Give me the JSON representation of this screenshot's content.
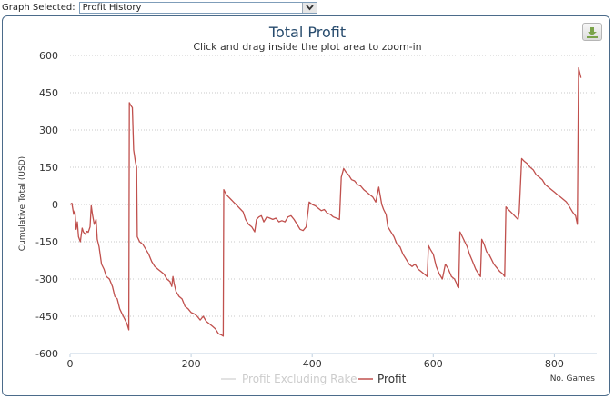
{
  "header": {
    "graph_selected_label": "Graph Selected:",
    "graph_selected_value": "Profit History"
  },
  "toolbar": {
    "download_icon": "download-icon"
  },
  "chart_data": {
    "type": "line",
    "title": "Total Profit",
    "subtitle": "Click and drag inside the plot area to zoom-in",
    "xlabel": "No. Games",
    "ylabel": "Cumulative Total (USD)",
    "xlim": [
      0,
      870
    ],
    "ylim": [
      -600,
      600
    ],
    "x_ticks": [
      0,
      200,
      400,
      600,
      800
    ],
    "y_ticks": [
      -600,
      -450,
      -300,
      -150,
      0,
      150,
      300,
      450,
      600
    ],
    "grid": "horizontal dotted",
    "legend_position": "bottom-center",
    "series": [
      {
        "name": "Profit Excluding Rake",
        "color": "#d8d8d8",
        "visible": false,
        "points": []
      },
      {
        "name": "Profit",
        "color": "#c0504d",
        "visible": true,
        "points": [
          [
            0,
            0
          ],
          [
            3,
            5
          ],
          [
            6,
            -40
          ],
          [
            8,
            -25
          ],
          [
            10,
            -100
          ],
          [
            12,
            -70
          ],
          [
            14,
            -130
          ],
          [
            17,
            -150
          ],
          [
            20,
            -95
          ],
          [
            22,
            -110
          ],
          [
            25,
            -120
          ],
          [
            28,
            -108
          ],
          [
            30,
            -112
          ],
          [
            33,
            -90
          ],
          [
            35,
            -5
          ],
          [
            37,
            -40
          ],
          [
            40,
            -80
          ],
          [
            43,
            -60
          ],
          [
            45,
            -140
          ],
          [
            48,
            -170
          ],
          [
            52,
            -240
          ],
          [
            56,
            -260
          ],
          [
            60,
            -290
          ],
          [
            65,
            -300
          ],
          [
            70,
            -330
          ],
          [
            74,
            -370
          ],
          [
            78,
            -380
          ],
          [
            82,
            -420
          ],
          [
            86,
            -440
          ],
          [
            90,
            -460
          ],
          [
            94,
            -480
          ],
          [
            97,
            -505
          ],
          [
            98,
            410
          ],
          [
            100,
            400
          ],
          [
            103,
            390
          ],
          [
            105,
            220
          ],
          [
            108,
            170
          ],
          [
            110,
            150
          ],
          [
            111,
            -130
          ],
          [
            115,
            -150
          ],
          [
            120,
            -160
          ],
          [
            125,
            -180
          ],
          [
            130,
            -200
          ],
          [
            135,
            -230
          ],
          [
            140,
            -250
          ],
          [
            145,
            -260
          ],
          [
            150,
            -270
          ],
          [
            155,
            -280
          ],
          [
            160,
            -300
          ],
          [
            165,
            -310
          ],
          [
            168,
            -330
          ],
          [
            170,
            -290
          ],
          [
            172,
            -320
          ],
          [
            175,
            -350
          ],
          [
            180,
            -370
          ],
          [
            185,
            -380
          ],
          [
            190,
            -410
          ],
          [
            195,
            -420
          ],
          [
            200,
            -435
          ],
          [
            205,
            -440
          ],
          [
            210,
            -450
          ],
          [
            215,
            -465
          ],
          [
            220,
            -450
          ],
          [
            225,
            -470
          ],
          [
            230,
            -480
          ],
          [
            235,
            -490
          ],
          [
            240,
            -500
          ],
          [
            245,
            -520
          ],
          [
            250,
            -525
          ],
          [
            253,
            -530
          ],
          [
            254,
            60
          ],
          [
            258,
            40
          ],
          [
            262,
            30
          ],
          [
            266,
            20
          ],
          [
            270,
            10
          ],
          [
            274,
            0
          ],
          [
            278,
            -10
          ],
          [
            282,
            -20
          ],
          [
            286,
            -30
          ],
          [
            290,
            -60
          ],
          [
            295,
            -80
          ],
          [
            300,
            -90
          ],
          [
            305,
            -110
          ],
          [
            308,
            -60
          ],
          [
            312,
            -50
          ],
          [
            316,
            -45
          ],
          [
            320,
            -70
          ],
          [
            325,
            -50
          ],
          [
            330,
            -55
          ],
          [
            335,
            -60
          ],
          [
            340,
            -55
          ],
          [
            345,
            -70
          ],
          [
            350,
            -65
          ],
          [
            355,
            -70
          ],
          [
            360,
            -50
          ],
          [
            365,
            -45
          ],
          [
            370,
            -60
          ],
          [
            375,
            -80
          ],
          [
            380,
            -100
          ],
          [
            385,
            -105
          ],
          [
            390,
            -90
          ],
          [
            395,
            10
          ],
          [
            400,
            0
          ],
          [
            405,
            -5
          ],
          [
            410,
            -15
          ],
          [
            415,
            -25
          ],
          [
            420,
            -20
          ],
          [
            425,
            -35
          ],
          [
            430,
            -40
          ],
          [
            435,
            -50
          ],
          [
            440,
            -55
          ],
          [
            445,
            -60
          ],
          [
            448,
            110
          ],
          [
            452,
            145
          ],
          [
            456,
            130
          ],
          [
            460,
            120
          ],
          [
            465,
            100
          ],
          [
            470,
            95
          ],
          [
            475,
            80
          ],
          [
            480,
            75
          ],
          [
            485,
            60
          ],
          [
            490,
            50
          ],
          [
            495,
            40
          ],
          [
            500,
            30
          ],
          [
            505,
            10
          ],
          [
            510,
            70
          ],
          [
            515,
            0
          ],
          [
            518,
            -20
          ],
          [
            522,
            -40
          ],
          [
            525,
            -90
          ],
          [
            530,
            -110
          ],
          [
            535,
            -130
          ],
          [
            540,
            -160
          ],
          [
            545,
            -170
          ],
          [
            550,
            -200
          ],
          [
            555,
            -220
          ],
          [
            560,
            -240
          ],
          [
            565,
            -250
          ],
          [
            570,
            -240
          ],
          [
            575,
            -260
          ],
          [
            580,
            -270
          ],
          [
            585,
            -280
          ],
          [
            590,
            -290
          ],
          [
            592,
            -165
          ],
          [
            595,
            -180
          ],
          [
            600,
            -200
          ],
          [
            605,
            -250
          ],
          [
            610,
            -280
          ],
          [
            615,
            -300
          ],
          [
            620,
            -240
          ],
          [
            625,
            -260
          ],
          [
            630,
            -290
          ],
          [
            635,
            -300
          ],
          [
            638,
            -315
          ],
          [
            640,
            -330
          ],
          [
            642,
            -335
          ],
          [
            644,
            -110
          ],
          [
            648,
            -130
          ],
          [
            652,
            -150
          ],
          [
            656,
            -170
          ],
          [
            660,
            -200
          ],
          [
            665,
            -230
          ],
          [
            670,
            -260
          ],
          [
            675,
            -280
          ],
          [
            678,
            -290
          ],
          [
            680,
            -140
          ],
          [
            684,
            -160
          ],
          [
            688,
            -190
          ],
          [
            692,
            -200
          ],
          [
            696,
            -220
          ],
          [
            700,
            -240
          ],
          [
            705,
            -255
          ],
          [
            710,
            -270
          ],
          [
            715,
            -280
          ],
          [
            718,
            -290
          ],
          [
            720,
            -10
          ],
          [
            724,
            -20
          ],
          [
            728,
            -30
          ],
          [
            732,
            -40
          ],
          [
            736,
            -50
          ],
          [
            740,
            -60
          ],
          [
            742,
            -30
          ],
          [
            746,
            185
          ],
          [
            750,
            175
          ],
          [
            755,
            165
          ],
          [
            760,
            150
          ],
          [
            765,
            140
          ],
          [
            770,
            120
          ],
          [
            775,
            110
          ],
          [
            780,
            100
          ],
          [
            785,
            80
          ],
          [
            790,
            70
          ],
          [
            795,
            60
          ],
          [
            800,
            50
          ],
          [
            805,
            40
          ],
          [
            810,
            30
          ],
          [
            815,
            20
          ],
          [
            820,
            10
          ],
          [
            825,
            -10
          ],
          [
            830,
            -30
          ],
          [
            833,
            -40
          ],
          [
            835,
            -45
          ],
          [
            838,
            -80
          ],
          [
            840,
            550
          ],
          [
            842,
            530
          ],
          [
            844,
            510
          ]
        ]
      }
    ]
  }
}
